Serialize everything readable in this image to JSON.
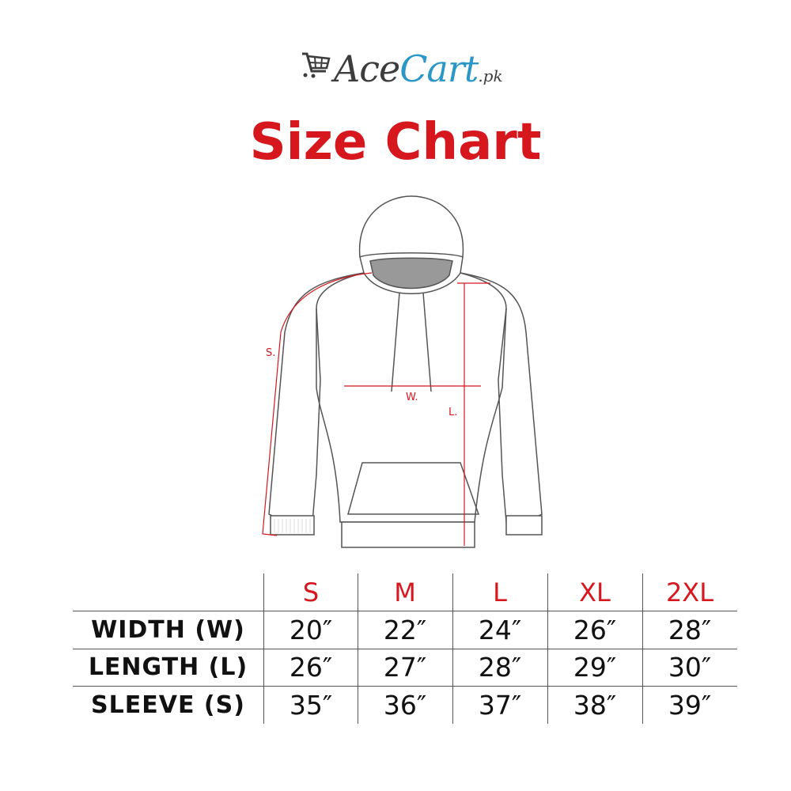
{
  "brand": {
    "part1": "Ace",
    "part2": "Cart",
    "suffix": ".pk",
    "icon": "shopping-cart-icon",
    "colors": {
      "dark": "#3d3d3d",
      "blue": "#2b97c8"
    }
  },
  "title": "Size Chart",
  "accent_color": "#d7171e",
  "diagram": {
    "labels": {
      "sleeve": "S.",
      "width": "W.",
      "length": "L."
    }
  },
  "table": {
    "sizes": [
      "S",
      "M",
      "L",
      "XL",
      "2XL"
    ],
    "rows": [
      {
        "label": "WIDTH (W)",
        "values": [
          "20″",
          "22″",
          "24″",
          "26″",
          "28″"
        ]
      },
      {
        "label": "LENGTH (L)",
        "values": [
          "26″",
          "27″",
          "28″",
          "29″",
          "30″"
        ]
      },
      {
        "label": "SLEEVE (S)",
        "values": [
          "35″",
          "36″",
          "37″",
          "38″",
          "39″"
        ]
      }
    ]
  }
}
